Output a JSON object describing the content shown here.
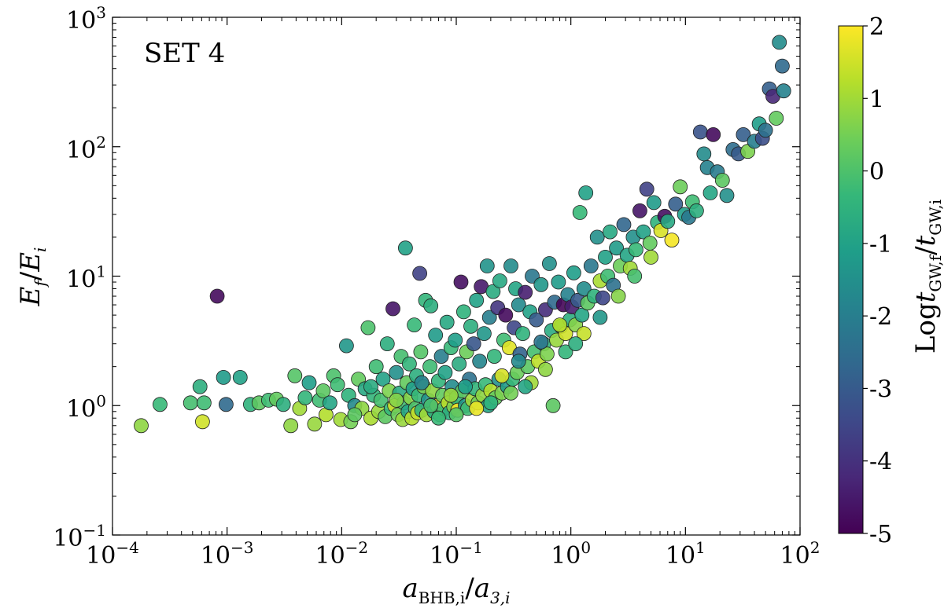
{
  "chart_data": {
    "type": "scatter",
    "annotation": "SET 4",
    "x_scale": "log",
    "y_scale": "log",
    "xlim_exp": [
      -4,
      2
    ],
    "ylim_exp": [
      -1,
      3
    ],
    "x_ticks": [
      {
        "base": "10",
        "exp": "−4",
        "value": -4
      },
      {
        "base": "10",
        "exp": "−3",
        "value": -3
      },
      {
        "base": "10",
        "exp": "−2",
        "value": -2
      },
      {
        "base": "10",
        "exp": "−1",
        "value": -1
      },
      {
        "base": "10",
        "exp": "0",
        "value": 0
      },
      {
        "base": "10",
        "exp": "1",
        "value": 1
      },
      {
        "base": "10",
        "exp": "2",
        "value": 2
      }
    ],
    "y_ticks": [
      {
        "base": "10",
        "exp": "−1",
        "value": -1
      },
      {
        "base": "10",
        "exp": "0",
        "value": 0
      },
      {
        "base": "10",
        "exp": "1",
        "value": 1
      },
      {
        "base": "10",
        "exp": "2",
        "value": 2
      },
      {
        "base": "10",
        "exp": "3",
        "value": 3
      }
    ],
    "xlabel": {
      "main": "a",
      "sub1": "BHB,i",
      "slash": "/",
      "main2": "a",
      "sub2": "3,i"
    },
    "ylabel": {
      "main": "E",
      "sub1": "f",
      "slash": "/",
      "main2": "E",
      "sub2": "i"
    },
    "colorbar": {
      "label": {
        "prefix": "Log",
        "main": "t",
        "sub1": "GW,f",
        "slash": "/",
        "main2": "t",
        "sub2": "GW,i"
      },
      "range": [
        -5,
        2
      ],
      "ticks": [
        "2",
        "1",
        "0",
        "-1",
        "-2",
        "-3",
        "-4",
        "-5"
      ],
      "tick_values": [
        2,
        1,
        0,
        -1,
        -2,
        -3,
        -4,
        -5
      ],
      "colormap": "viridis",
      "colors": [
        "#440154",
        "#482878",
        "#3e4989",
        "#31688e",
        "#26828e",
        "#1f9e89",
        "#35b779",
        "#6ece58",
        "#b5de2b",
        "#fde725"
      ]
    },
    "points": [
      [
        0.000178,
        0.7,
        0.8
      ],
      [
        0.00026,
        1.02,
        -0.3
      ],
      [
        0.00048,
        1.05,
        -0.1
      ],
      [
        0.00058,
        1.4,
        -0.6
      ],
      [
        0.00061,
        0.75,
        1.5
      ],
      [
        0.00063,
        1.05,
        -0.2
      ],
      [
        0.00082,
        7.0,
        -4.8
      ],
      [
        0.00093,
        1.65,
        -1.2
      ],
      [
        0.00098,
        1.02,
        -2.6
      ],
      [
        0.0013,
        1.65,
        -1.0
      ],
      [
        0.0016,
        1.02,
        -0.5
      ],
      [
        0.0019,
        1.05,
        0.2
      ],
      [
        0.0023,
        1.1,
        -0.2
      ],
      [
        0.0027,
        1.12,
        0.3
      ],
      [
        0.0031,
        1.02,
        -0.6
      ],
      [
        0.0036,
        0.7,
        0.8
      ],
      [
        0.0039,
        1.7,
        0.1
      ],
      [
        0.0043,
        0.95,
        1.0
      ],
      [
        0.0048,
        1.15,
        -0.4
      ],
      [
        0.0052,
        1.5,
        -1.1
      ],
      [
        0.0058,
        0.72,
        0.9
      ],
      [
        0.0064,
        1.1,
        -0.2
      ],
      [
        0.0069,
        1.3,
        0.2
      ],
      [
        0.0073,
        0.85,
        1.2
      ],
      [
        0.0079,
        1.05,
        -0.9
      ],
      [
        0.0085,
        1.7,
        0.0
      ],
      [
        0.0092,
        1.45,
        -0.2
      ],
      [
        0.0098,
        0.78,
        1.0
      ],
      [
        0.011,
        2.9,
        -1.3
      ],
      [
        0.0115,
        1.2,
        -0.5
      ],
      [
        0.012,
        0.75,
        0.5
      ],
      [
        0.013,
        1.0,
        -1.7
      ],
      [
        0.014,
        1.6,
        0.3
      ],
      [
        0.015,
        0.95,
        0.8
      ],
      [
        0.016,
        1.35,
        -0.8
      ],
      [
        0.017,
        4.0,
        0.0
      ],
      [
        0.018,
        0.8,
        1.1
      ],
      [
        0.019,
        1.2,
        -0.4
      ],
      [
        0.02,
        2.0,
        -0.2
      ],
      [
        0.021,
        0.9,
        0.9
      ],
      [
        0.022,
        1.1,
        -0.1
      ],
      [
        0.023,
        1.6,
        -1.0
      ],
      [
        0.024,
        0.82,
        0.2
      ],
      [
        0.025,
        3.0,
        -0.6
      ],
      [
        0.026,
        1.3,
        0.6
      ],
      [
        0.027,
        0.95,
        -0.3
      ],
      [
        0.028,
        5.6,
        -4.6
      ],
      [
        0.029,
        1.0,
        1.5
      ],
      [
        0.03,
        1.8,
        -1.5
      ],
      [
        0.031,
        0.85,
        0.4
      ],
      [
        0.032,
        1.25,
        -0.7
      ],
      [
        0.033,
        2.4,
        -0.1
      ],
      [
        0.034,
        0.78,
        0.9
      ],
      [
        0.035,
        1.05,
        -0.2
      ],
      [
        0.036,
        16.5,
        -1.0
      ],
      [
        0.037,
        1.5,
        0.3
      ],
      [
        0.038,
        0.9,
        -0.9
      ],
      [
        0.039,
        2.1,
        -0.4
      ],
      [
        0.04,
        1.15,
        0.7
      ],
      [
        0.041,
        0.8,
        1.2
      ],
      [
        0.042,
        1.35,
        -1.1
      ],
      [
        0.043,
        4.2,
        -0.3
      ],
      [
        0.044,
        0.95,
        0.0
      ],
      [
        0.045,
        1.7,
        -0.6
      ],
      [
        0.046,
        0.88,
        1.4
      ],
      [
        0.047,
        1.2,
        -0.3
      ],
      [
        0.048,
        10.5,
        -3.6
      ],
      [
        0.049,
        2.6,
        0.1
      ],
      [
        0.05,
        0.92,
        -0.5
      ],
      [
        0.052,
        1.4,
        0.5
      ],
      [
        0.054,
        6.5,
        -0.4
      ],
      [
        0.055,
        0.85,
        1.0
      ],
      [
        0.057,
        1.1,
        -1.4
      ],
      [
        0.059,
        2.0,
        -0.2
      ],
      [
        0.06,
        5.9,
        -0.6
      ],
      [
        0.062,
        1.3,
        0.8
      ],
      [
        0.064,
        0.9,
        -0.7
      ],
      [
        0.066,
        3.5,
        -1.2
      ],
      [
        0.068,
        1.0,
        1.6
      ],
      [
        0.07,
        1.55,
        -0.4
      ],
      [
        0.072,
        0.85,
        0.2
      ],
      [
        0.074,
        2.4,
        -2.0
      ],
      [
        0.076,
        1.2,
        0.3
      ],
      [
        0.078,
        0.95,
        -0.1
      ],
      [
        0.08,
        1.8,
        -1.0
      ],
      [
        0.083,
        4.4,
        -0.8
      ],
      [
        0.085,
        1.05,
        1.3
      ],
      [
        0.087,
        0.88,
        -0.6
      ],
      [
        0.09,
        2.8,
        -0.3
      ],
      [
        0.092,
        1.4,
        -1.6
      ],
      [
        0.095,
        0.98,
        0.6
      ],
      [
        0.098,
        3.2,
        -1.1
      ],
      [
        0.1,
        1.15,
        -0.4
      ],
      [
        0.103,
        0.92,
        1.9
      ],
      [
        0.106,
        2.1,
        -0.7
      ],
      [
        0.11,
        9.0,
        -4.7
      ],
      [
        0.113,
        1.3,
        0.2
      ],
      [
        0.116,
        5.3,
        -0.5
      ],
      [
        0.12,
        1.0,
        -1.3
      ],
      [
        0.123,
        2.6,
        0.4
      ],
      [
        0.126,
        0.95,
        -0.2
      ],
      [
        0.13,
        1.6,
        -2.4
      ],
      [
        0.134,
        4.1,
        -0.6
      ],
      [
        0.138,
        1.1,
        1.0
      ],
      [
        0.142,
        3.0,
        -3.1
      ],
      [
        0.146,
        1.35,
        -0.4
      ],
      [
        0.15,
        6.5,
        -1.0
      ],
      [
        0.155,
        1.05,
        0.5
      ],
      [
        0.16,
        2.2,
        -1.8
      ],
      [
        0.165,
        8.3,
        -4.5
      ],
      [
        0.17,
        1.2,
        0.8
      ],
      [
        0.175,
        3.6,
        -1.3
      ],
      [
        0.18,
        1.45,
        -0.3
      ],
      [
        0.186,
        12.0,
        -1.4
      ],
      [
        0.19,
        1.0,
        -0.9
      ],
      [
        0.195,
        4.8,
        -2.0
      ],
      [
        0.2,
        1.3,
        1.2
      ],
      [
        0.21,
        7.6,
        -0.7
      ],
      [
        0.215,
        2.4,
        -0.4
      ],
      [
        0.22,
        1.15,
        0.3
      ],
      [
        0.23,
        5.7,
        -3.9
      ],
      [
        0.235,
        1.6,
        -1.5
      ],
      [
        0.24,
        9.2,
        -0.8
      ],
      [
        0.25,
        1.25,
        0.6
      ],
      [
        0.26,
        3.2,
        -0.2
      ],
      [
        0.27,
        5.0,
        -4.8
      ],
      [
        0.28,
        1.4,
        -1.2
      ],
      [
        0.29,
        2.8,
        1.7
      ],
      [
        0.3,
        12.0,
        -1.6
      ],
      [
        0.31,
        1.6,
        -0.3
      ],
      [
        0.32,
        4.0,
        -3.5
      ],
      [
        0.33,
        8.0,
        -0.9
      ],
      [
        0.34,
        1.8,
        0.4
      ],
      [
        0.35,
        6.0,
        -1.7
      ],
      [
        0.36,
        2.5,
        -2.8
      ],
      [
        0.38,
        3.6,
        -0.5
      ],
      [
        0.4,
        7.5,
        -4.4
      ],
      [
        0.42,
        2.0,
        0.2
      ],
      [
        0.44,
        5.3,
        -1.0
      ],
      [
        0.46,
        10.0,
        -2.2
      ],
      [
        0.48,
        2.6,
        -0.1
      ],
      [
        0.5,
        4.6,
        -3.0
      ],
      [
        0.52,
        2.2,
        1.3
      ],
      [
        0.55,
        8.6,
        -1.3
      ],
      [
        0.58,
        3.0,
        -0.4
      ],
      [
        0.6,
        5.5,
        -4.1
      ],
      [
        0.62,
        2.5,
        0.6
      ],
      [
        0.65,
        12.5,
        -1.5
      ],
      [
        0.68,
        3.8,
        -0.7
      ],
      [
        0.7,
        1.0,
        0.2
      ],
      [
        0.72,
        6.3,
        -2.6
      ],
      [
        0.75,
        3.2,
        0.9
      ],
      [
        0.78,
        9.0,
        -1.2
      ],
      [
        0.82,
        4.1,
        -0.3
      ],
      [
        0.86,
        6.0,
        -4.9
      ],
      [
        0.9,
        3.6,
        1.5
      ],
      [
        0.94,
        7.2,
        -1.9
      ],
      [
        0.98,
        4.6,
        -0.6
      ],
      [
        1.02,
        5.8,
        -4.4
      ],
      [
        1.06,
        10.6,
        -1.1
      ],
      [
        1.1,
        4.2,
        0.7
      ],
      [
        1.15,
        6.5,
        -3.0
      ],
      [
        1.2,
        31.0,
        -0.3
      ],
      [
        1.25,
        5.0,
        -0.9
      ],
      [
        1.3,
        8.0,
        -1.6
      ],
      [
        1.35,
        44.0,
        -1.0
      ],
      [
        1.4,
        6.2,
        0.2
      ],
      [
        1.5,
        12.0,
        -2.2
      ],
      [
        1.6,
        7.0,
        -0.5
      ],
      [
        1.7,
        20.0,
        -1.5
      ],
      [
        1.8,
        9.2,
        1.1
      ],
      [
        1.9,
        6.8,
        -3.5
      ],
      [
        2.0,
        14.0,
        -1.0
      ],
      [
        2.1,
        10.0,
        -0.2
      ],
      [
        2.2,
        22.0,
        -0.8
      ],
      [
        2.35,
        8.5,
        -2.4
      ],
      [
        2.5,
        16.5,
        -1.2
      ],
      [
        2.7,
        12.0,
        0.4
      ],
      [
        2.9,
        25.0,
        -2.7
      ],
      [
        3.1,
        14.5,
        -0.9
      ],
      [
        3.3,
        11.5,
        1.0
      ],
      [
        3.5,
        20.0,
        -1.5
      ],
      [
        3.7,
        16.0,
        -0.3
      ],
      [
        4.0,
        32.0,
        -4.6
      ],
      [
        4.3,
        22.0,
        -1.0
      ],
      [
        4.6,
        47.0,
        -3.6
      ],
      [
        4.9,
        18.0,
        0.3
      ],
      [
        5.3,
        37.0,
        -1.2
      ],
      [
        5.7,
        26.0,
        -0.5
      ],
      [
        6.1,
        22.5,
        1.6
      ],
      [
        6.6,
        29.0,
        -4.7
      ],
      [
        7.0,
        26.5,
        -0.8
      ],
      [
        7.6,
        19.0,
        1.9
      ],
      [
        8.2,
        36.0,
        -2.9
      ],
      [
        9.0,
        49.0,
        0.4
      ],
      [
        9.8,
        30.0,
        -1.1
      ],
      [
        10.7,
        28.5,
        -2.2
      ],
      [
        11.5,
        37.5,
        -0.2
      ],
      [
        12.5,
        32.0,
        -0.6
      ],
      [
        13.5,
        130.0,
        -3.2
      ],
      [
        14.5,
        88.0,
        -1.6
      ],
      [
        15.5,
        69.0,
        -1.9
      ],
      [
        16.5,
        44.0,
        -0.9
      ],
      [
        17.5,
        124.0,
        -4.8
      ],
      [
        19.0,
        64.0,
        -2.1
      ],
      [
        21.0,
        55.0,
        0.2
      ],
      [
        23.0,
        42.0,
        -1.5
      ],
      [
        26.0,
        95.0,
        -2.5
      ],
      [
        29.0,
        88.0,
        -3.0
      ],
      [
        32.0,
        124.0,
        -2.9
      ],
      [
        35.0,
        92.0,
        0.6
      ],
      [
        40.0,
        110.0,
        -2.0
      ],
      [
        44.0,
        150.0,
        -1.1
      ],
      [
        47.0,
        116.0,
        -3.3
      ],
      [
        50.0,
        134.0,
        -2.4
      ],
      [
        54.0,
        280.0,
        -2.9
      ],
      [
        58.0,
        245.0,
        -4.2
      ],
      [
        62.0,
        166.0,
        0.3
      ],
      [
        66.0,
        640.0,
        -1.6
      ],
      [
        70.0,
        420.0,
        -2.6
      ],
      [
        72.0,
        270.0,
        -1.9
      ],
      [
        0.45,
        1.5,
        1.0
      ],
      [
        0.3,
        1.25,
        0.5
      ],
      [
        0.2,
        1.05,
        -0.5
      ],
      [
        0.15,
        0.95,
        1.8
      ],
      [
        0.1,
        0.85,
        0.1
      ],
      [
        0.07,
        0.8,
        -0.3
      ],
      [
        0.4,
        1.4,
        -0.9
      ],
      [
        0.6,
        1.9,
        0.8
      ],
      [
        0.9,
        2.6,
        -0.4
      ],
      [
        1.3,
        3.6,
        1.4
      ],
      [
        1.8,
        4.8,
        -1.3
      ],
      [
        2.6,
        7.0,
        0.7
      ],
      [
        3.6,
        10.0,
        -0.1
      ],
      [
        5.0,
        14.0,
        1.0
      ],
      [
        0.35,
        2.2,
        -1.7
      ],
      [
        0.55,
        3.1,
        -2.3
      ],
      [
        0.8,
        4.2,
        1.2
      ],
      [
        1.1,
        3.0,
        -0.6
      ],
      [
        0.25,
        1.7,
        1.6
      ],
      [
        0.12,
        1.4,
        -1.1
      ],
      [
        0.09,
        1.2,
        0.9
      ],
      [
        0.06,
        1.0,
        -0.1
      ],
      [
        0.05,
        1.5,
        -1.9
      ],
      [
        0.03,
        1.1,
        0.7
      ],
      [
        0.018,
        1.4,
        -0.7
      ],
      [
        0.013,
        0.85,
        0.2
      ]
    ]
  }
}
